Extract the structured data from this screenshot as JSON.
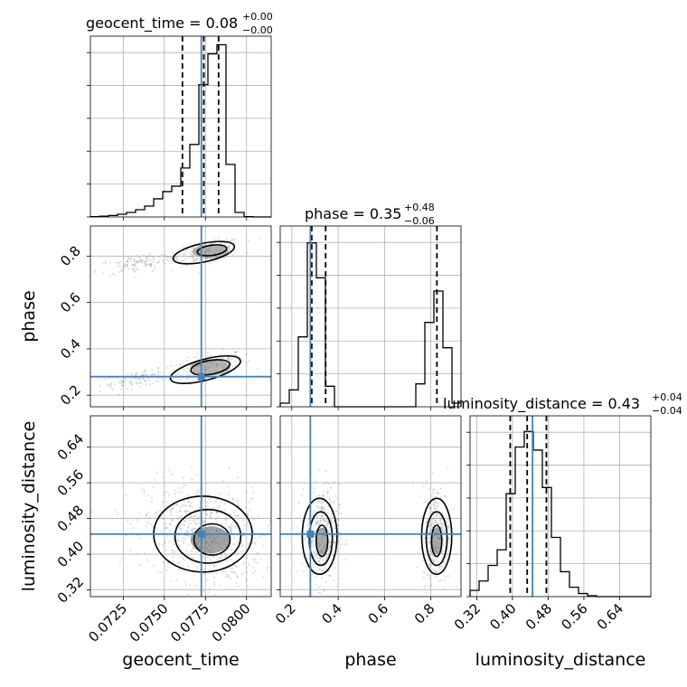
{
  "parameters": [
    "geocent_time",
    "phase",
    "luminosity_distance"
  ],
  "axis_labels": {
    "geocent_time": "geocent_time",
    "phase": "phase",
    "luminosity_distance": "luminosity_distance"
  },
  "titles": {
    "geocent_time": {
      "name": "geocent_time",
      "median": "0.08",
      "plus": "+0.00",
      "minus": "−0.00"
    },
    "phase": {
      "name": "phase",
      "median": "0.35",
      "plus": "+0.48",
      "minus": "−0.06"
    },
    "luminosity_distance": {
      "name": "luminosity_distance",
      "median": "0.43",
      "plus": "+0.04",
      "minus": "−0.04"
    }
  },
  "colors": {
    "truth": "#4682b4",
    "hist": "#000000",
    "grid": "#b0b0b0"
  },
  "chart_data": {
    "type": "corner",
    "grid": true,
    "ranges": {
      "geocent_time": [
        0.0705,
        0.0815
      ],
      "phase": [
        0.15,
        0.93
      ],
      "luminosity_distance": [
        0.305,
        0.71
      ]
    },
    "ticks": {
      "geocent_time": {
        "values": [
          0.0725,
          0.075,
          0.0775,
          0.08
        ],
        "labels": [
          "0.0725",
          "0.0750",
          "0.0775",
          "0.0800"
        ]
      },
      "phase": {
        "values": [
          0.2,
          0.4,
          0.6,
          0.8
        ],
        "labels": [
          "0.2",
          "0.4",
          "0.6",
          "0.8"
        ]
      },
      "luminosity_distance": {
        "values": [
          0.32,
          0.4,
          0.48,
          0.56,
          0.64
        ],
        "labels": [
          "0.32",
          "0.40",
          "0.48",
          "0.56",
          "0.64"
        ]
      }
    },
    "truths": {
      "geocent_time": 0.07725,
      "phase": 0.28,
      "luminosity_distance": 0.445
    },
    "quantiles": {
      "geocent_time": [
        0.0761,
        0.0774,
        0.0783
      ],
      "phase": [
        0.286,
        0.346,
        0.826
      ],
      "luminosity_distance": [
        0.395,
        0.433,
        0.476
      ]
    },
    "histograms": {
      "geocent_time": {
        "edges": [
          0.0705,
          0.07105,
          0.0716,
          0.07215,
          0.0727,
          0.07325,
          0.0738,
          0.07435,
          0.0749,
          0.07545,
          0.076,
          0.07655,
          0.0771,
          0.07765,
          0.0782,
          0.07875,
          0.0793,
          0.07985,
          0.0804,
          0.08095,
          0.0815
        ],
        "counts": [
          0.2,
          0.4,
          0.8,
          1.5,
          2.5,
          4,
          6,
          10,
          14,
          17,
          27,
          40,
          73,
          90,
          95,
          29,
          2.5,
          0.2,
          0,
          0
        ]
      },
      "phase": {
        "edges": [
          0.15,
          0.189,
          0.228,
          0.267,
          0.306,
          0.345,
          0.384,
          0.423,
          0.462,
          0.501,
          0.54,
          0.579,
          0.618,
          0.657,
          0.696,
          0.735,
          0.774,
          0.813,
          0.852,
          0.891,
          0.93
        ],
        "counts": [
          3,
          14,
          58,
          136,
          107,
          17,
          0,
          0,
          0,
          0,
          0,
          0,
          0,
          0,
          0,
          19,
          70,
          96,
          49,
          3
        ],
        "ymax": 150
      },
      "luminosity_distance": {
        "edges": [
          0.305,
          0.32525,
          0.3455,
          0.36575,
          0.386,
          0.40625,
          0.4265,
          0.44675,
          0.467,
          0.48725,
          0.5075,
          0.52775,
          0.548,
          0.56825,
          0.5885,
          0.60875,
          0.629,
          0.64925,
          0.6695,
          0.68975,
          0.71
        ],
        "counts": [
          2,
          5,
          10,
          15,
          33,
          48,
          53,
          47,
          35,
          19,
          8,
          3,
          1,
          0.3,
          0,
          0,
          0,
          0,
          0,
          0
        ],
        "ymax": 58
      }
    }
  }
}
